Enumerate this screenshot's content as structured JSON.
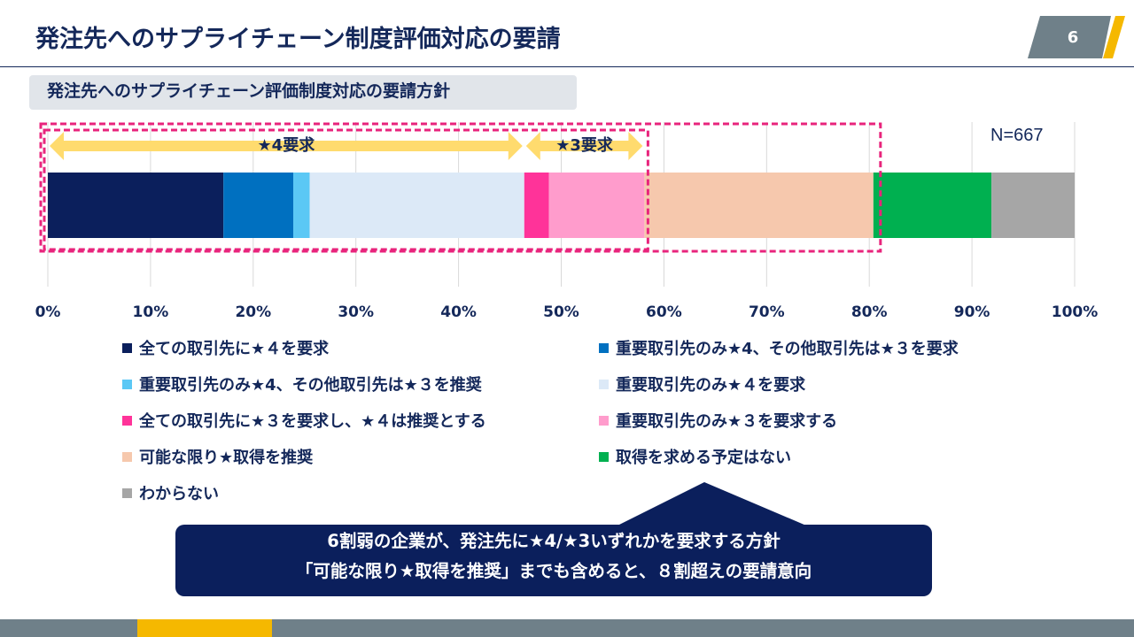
{
  "slide": {
    "title": "発注先へのサプライチェーン制度評価対応の要請",
    "page_number": "6",
    "subtitle": "発注先へのサプライチェーン評価制度対応の要請方針",
    "colors": {
      "navy": "#14285a",
      "accent_yellow": "#f5b800",
      "gray_tab": "#6f8089",
      "highlight_pink": "#e8247c",
      "arrow_yellow": "#ffdb6e"
    }
  },
  "chart_data": {
    "type": "bar",
    "orientation": "horizontal-stacked-100",
    "n_label": "N=667",
    "xlim": [
      0,
      100
    ],
    "x_ticks": [
      "0%",
      "10%",
      "20%",
      "30%",
      "40%",
      "50%",
      "60%",
      "70%",
      "80%",
      "90%",
      "100%"
    ],
    "series": [
      {
        "name": "全ての取引先に★４を要求",
        "value": 17.1,
        "color": "#0b1f5c"
      },
      {
        "name": "重要取引先のみ★4、その他取引先は★３を要求",
        "value": 6.8,
        "color": "#0070c0"
      },
      {
        "name": "重要取引先のみ★4、その他取引先は★３を推奨",
        "value": 1.6,
        "color": "#5bc8f5"
      },
      {
        "name": "重要取引先のみ★４を要求",
        "value": 20.9,
        "color": "#dce9f7"
      },
      {
        "name": "全ての取引先に★３を要求し、★４は推奨とする",
        "value": 2.4,
        "color": "#ff3399"
      },
      {
        "name": "重要取引先のみ★３を要求する",
        "value": 9.3,
        "color": "#ff9ccc"
      },
      {
        "name": "可能な限り★取得を推奨",
        "value": 22.3,
        "color": "#f6c8ad"
      },
      {
        "name": "取得を求める予定はない",
        "value": 11.5,
        "color": "#00b050"
      },
      {
        "name": "わからない",
        "value": 8.1,
        "color": "#a6a6a6"
      }
    ],
    "annotations": [
      {
        "label": "★4要求",
        "from": 0,
        "to": 46.4
      },
      {
        "label": "★3要求",
        "from": 46.4,
        "to": 58.1
      }
    ],
    "highlight_boxes": [
      {
        "from": 0,
        "to": 58.1
      },
      {
        "from": 0,
        "to": 80.4
      }
    ]
  },
  "callout": {
    "line1": "6割弱の企業が、発注先に★4/★3いずれかを要求する方針",
    "line2": "「可能な限り★取得を推奨」までも含めると、８割超えの要請意向"
  }
}
